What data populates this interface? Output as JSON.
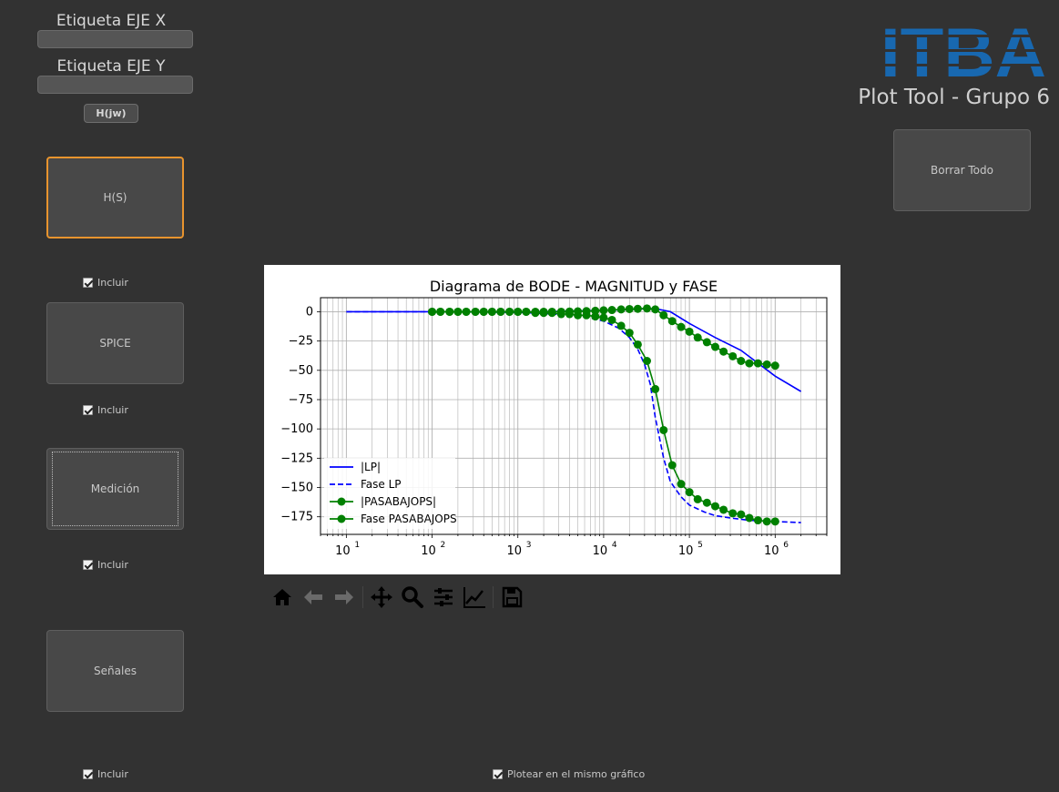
{
  "left_panel": {
    "x_label_caption": "Etiqueta EJE X",
    "x_label_value": "",
    "y_label_caption": "Etiqueta EJE Y",
    "y_label_value": "",
    "hjw_button": "H(jw)",
    "sources": [
      {
        "label": "H(S)",
        "include": "Incluir"
      },
      {
        "label": "SPICE",
        "include": "Incluir"
      },
      {
        "label": "Medición",
        "include": "Incluir"
      },
      {
        "label": "Señales",
        "include": "Incluir"
      }
    ]
  },
  "right_panel": {
    "logo_text": "ITBA",
    "app_title": "Plot Tool - Grupo 6",
    "clear_button": "Borrar Todo"
  },
  "same_plot_checkbox": "Plotear en el mismo gráfico",
  "toolbar": [
    "home-icon",
    "back-icon",
    "forward-icon",
    "pan-icon",
    "zoom-icon",
    "configure-subplots-icon",
    "edit-axis-icon",
    "save-icon"
  ],
  "colors": {
    "accent_focus": "#e8942e",
    "logo_blue": "#1868b0",
    "lp": "#0000ff",
    "pasabajops": "#008000"
  },
  "chart_data": {
    "type": "line",
    "title": "Diagrama de BODE - MAGNITUD y FASE",
    "xlabel": "",
    "ylabel": "",
    "xscale": "log",
    "xlim": [
      5,
      4000000
    ],
    "ylim": [
      -190,
      12
    ],
    "yticks": [
      0,
      -25,
      -50,
      -75,
      -100,
      -125,
      -150,
      -175
    ],
    "xticks": [
      10,
      100,
      1000,
      10000,
      100000,
      1000000
    ],
    "xtick_labels": [
      {
        "base": "10",
        "exp": "1"
      },
      {
        "base": "10",
        "exp": "2"
      },
      {
        "base": "10",
        "exp": "3"
      },
      {
        "base": "10",
        "exp": "4"
      },
      {
        "base": "10",
        "exp": "5"
      },
      {
        "base": "10",
        "exp": "6"
      }
    ],
    "grid": true,
    "legend_position": "lower-left",
    "series": [
      {
        "name": "|LP|",
        "color": "#0000ff",
        "dash": "solid",
        "markers": false,
        "x": [
          10,
          100,
          1000,
          3000,
          10000,
          20000,
          30000,
          40000,
          60000,
          100000,
          200000,
          400000,
          1000000,
          2000000
        ],
        "y": [
          0,
          0,
          0,
          0.3,
          1.2,
          2,
          2.5,
          2.6,
          0,
          -10,
          -22,
          -33,
          -55,
          -68
        ]
      },
      {
        "name": "Fase LP",
        "color": "#0000ff",
        "dash": "dashed",
        "markers": false,
        "x": [
          10,
          100,
          1000,
          5000,
          10000,
          15000,
          20000,
          25000,
          30000,
          35000,
          40000,
          50000,
          60000,
          80000,
          100000,
          150000,
          200000,
          300000,
          500000,
          1000000,
          2000000
        ],
        "y": [
          0,
          0,
          -0.5,
          -3,
          -8,
          -14,
          -22,
          -32,
          -45,
          -62,
          -90,
          -125,
          -145,
          -158,
          -165,
          -171,
          -174,
          -176,
          -178,
          -179,
          -180
        ]
      },
      {
        "name": "|PASABAJOPS|",
        "color": "#008000",
        "dash": "solid",
        "markers": true,
        "x": [
          100,
          125,
          160,
          200,
          250,
          320,
          400,
          500,
          630,
          800,
          1000,
          1250,
          1600,
          2000,
          2500,
          3200,
          4000,
          5000,
          6300,
          8000,
          10000,
          12500,
          16000,
          20000,
          25000,
          32000,
          40000,
          50000,
          63000,
          80000,
          100000,
          125000,
          160000,
          200000,
          250000,
          320000,
          400000,
          500000,
          630000,
          800000,
          1000000
        ],
        "y": [
          0,
          0,
          0,
          0,
          0,
          0,
          0,
          0,
          0,
          0,
          0,
          0,
          0,
          0,
          0,
          0,
          0.2,
          0.3,
          0.5,
          0.8,
          1.2,
          1.5,
          2,
          2.3,
          2.5,
          2.8,
          2,
          -3,
          -8,
          -13,
          -17,
          -22,
          -26,
          -30,
          -34,
          -38,
          -42,
          -44,
          -44,
          -45,
          -46
        ]
      },
      {
        "name": "Fase PASABAJOPS",
        "color": "#008000",
        "dash": "solid",
        "markers": true,
        "x": [
          100,
          125,
          160,
          200,
          250,
          320,
          400,
          500,
          630,
          800,
          1000,
          1250,
          1600,
          2000,
          2500,
          3200,
          4000,
          5000,
          6300,
          8000,
          10000,
          12500,
          16000,
          20000,
          25000,
          32000,
          40000,
          50000,
          63000,
          80000,
          100000,
          125000,
          160000,
          200000,
          250000,
          320000,
          400000,
          500000,
          630000,
          800000,
          1000000
        ],
        "y": [
          0,
          0,
          0,
          0,
          0,
          0,
          0,
          0,
          0,
          0,
          0,
          0,
          -1,
          -1,
          -1,
          -2,
          -2,
          -3,
          -3,
          -4,
          -5,
          -7,
          -12,
          -18,
          -28,
          -42,
          -66,
          -101,
          -131,
          -147,
          -154,
          -160,
          -163,
          -166,
          -169,
          -172,
          -173,
          -176,
          -178,
          -179,
          -179
        ]
      }
    ]
  }
}
